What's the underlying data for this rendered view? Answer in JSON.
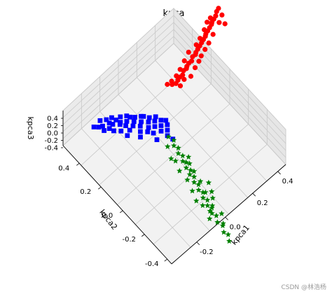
{
  "chart_data": {
    "type": "scatter",
    "projection": "3d",
    "title": "kpca",
    "xlabel": "kpca1",
    "ylabel": "kpca2",
    "zlabel": "kpca3",
    "xticks": [
      "-0.2",
      "0.0",
      "0.2",
      "0.4"
    ],
    "yticks": [
      "-0.4",
      "-0.2",
      "0.0",
      "0.2",
      "0.4"
    ],
    "zticks": [
      "0.4",
      "0.2",
      "0.0",
      "-0.2",
      "-0.4"
    ],
    "grid": true,
    "colors": {
      "red": "#ff0000",
      "blue": "#0000ff",
      "green": "#008000"
    },
    "series": [
      {
        "marker": "circle",
        "color": "#ff0000",
        "points": [
          [
            0.21,
            0.37
          ],
          [
            0.23,
            0.38
          ],
          [
            0.25,
            0.39
          ],
          [
            0.27,
            0.39
          ],
          [
            0.29,
            0.41
          ],
          [
            0.31,
            0.41
          ],
          [
            0.32,
            0.42
          ],
          [
            0.34,
            0.43
          ],
          [
            0.36,
            0.43
          ],
          [
            0.38,
            0.45
          ],
          [
            0.4,
            0.45
          ],
          [
            0.41,
            0.46
          ],
          [
            0.43,
            0.47
          ],
          [
            0.45,
            0.48
          ],
          [
            0.47,
            0.49
          ],
          [
            0.49,
            0.5
          ],
          [
            0.51,
            0.51
          ],
          [
            0.52,
            0.52
          ],
          [
            0.54,
            0.53
          ],
          [
            0.56,
            0.54
          ],
          [
            0.58,
            0.55
          ],
          [
            0.59,
            0.56
          ],
          [
            0.61,
            0.57
          ],
          [
            0.63,
            0.58
          ],
          [
            0.65,
            0.6
          ],
          [
            0.67,
            0.61
          ],
          [
            0.44,
            0.5
          ],
          [
            0.48,
            0.52
          ],
          [
            0.53,
            0.55
          ],
          [
            0.57,
            0.58
          ],
          [
            0.6,
            0.59
          ],
          [
            0.38,
            0.49
          ],
          [
            0.33,
            0.46
          ],
          [
            0.28,
            0.43
          ],
          [
            0.24,
            0.41
          ],
          [
            0.2,
            0.4
          ],
          [
            0.17,
            0.4
          ],
          [
            0.19,
            0.38
          ],
          [
            0.3,
            0.35
          ],
          [
            0.35,
            0.38
          ],
          [
            0.42,
            0.42
          ],
          [
            0.5,
            0.46
          ],
          [
            0.55,
            0.49
          ],
          [
            0.62,
            0.53
          ],
          [
            0.66,
            0.56
          ],
          [
            0.64,
            0.5
          ],
          [
            0.46,
            0.44
          ],
          [
            0.39,
            0.4
          ],
          [
            0.26,
            0.36
          ],
          [
            0.22,
            0.34
          ]
        ]
      },
      {
        "marker": "square",
        "color": "#0000ff",
        "points": [
          [
            -0.3,
            0.46
          ],
          [
            -0.26,
            0.43
          ],
          [
            -0.25,
            0.47
          ],
          [
            -0.22,
            0.42
          ],
          [
            -0.21,
            0.4
          ],
          [
            -0.19,
            0.44
          ],
          [
            -0.17,
            0.38
          ],
          [
            -0.15,
            0.41
          ],
          [
            -0.14,
            0.36
          ],
          [
            -0.12,
            0.39
          ],
          [
            -0.11,
            0.33
          ],
          [
            -0.09,
            0.35
          ],
          [
            -0.08,
            0.3
          ],
          [
            -0.06,
            0.33
          ],
          [
            -0.05,
            0.27
          ],
          [
            -0.03,
            0.29
          ],
          [
            -0.02,
            0.25
          ],
          [
            0.0,
            0.27
          ],
          [
            -0.04,
            0.22
          ],
          [
            -0.01,
            0.2
          ],
          [
            0.01,
            0.23
          ],
          [
            -0.07,
            0.24
          ],
          [
            -0.1,
            0.28
          ],
          [
            -0.13,
            0.31
          ],
          [
            -0.16,
            0.34
          ],
          [
            -0.18,
            0.37
          ],
          [
            -0.2,
            0.33
          ],
          [
            -0.23,
            0.36
          ],
          [
            -0.24,
            0.39
          ],
          [
            -0.27,
            0.4
          ],
          [
            -0.09,
            0.22
          ],
          [
            -0.12,
            0.25
          ],
          [
            -0.05,
            0.32
          ],
          [
            0.02,
            0.18
          ],
          [
            -0.03,
            0.17
          ],
          [
            -0.28,
            0.44
          ],
          [
            -0.16,
            0.3
          ],
          [
            -0.19,
            0.28
          ],
          [
            -0.14,
            0.22
          ],
          [
            -0.07,
            0.19
          ],
          [
            0.0,
            0.15
          ],
          [
            -0.11,
            0.37
          ],
          [
            -0.22,
            0.45
          ],
          [
            -0.18,
            0.41
          ],
          [
            -0.02,
            0.12
          ],
          [
            -0.08,
            0.14
          ],
          [
            0.03,
            0.21
          ],
          [
            -0.01,
            0.08
          ]
        ]
      },
      {
        "marker": "star",
        "color": "#008000",
        "points": [
          [
            -0.02,
            0.11
          ],
          [
            -0.01,
            0.07
          ],
          [
            -0.03,
            0.04
          ],
          [
            -0.02,
            0.01
          ],
          [
            -0.04,
            -0.02
          ],
          [
            -0.03,
            -0.05
          ],
          [
            -0.05,
            -0.08
          ],
          [
            -0.04,
            -0.1
          ],
          [
            -0.06,
            -0.13
          ],
          [
            -0.05,
            -0.16
          ],
          [
            -0.07,
            -0.18
          ],
          [
            -0.06,
            -0.21
          ],
          [
            -0.08,
            -0.24
          ],
          [
            -0.07,
            -0.27
          ],
          [
            -0.09,
            -0.3
          ],
          [
            -0.08,
            -0.33
          ],
          [
            -0.1,
            -0.36
          ],
          [
            -0.09,
            -0.39
          ],
          [
            -0.11,
            -0.42
          ],
          [
            -0.1,
            -0.45
          ],
          [
            -0.12,
            -0.48
          ],
          [
            -0.11,
            -0.51
          ],
          [
            -0.13,
            -0.55
          ],
          [
            -0.12,
            -0.59
          ],
          [
            -0.14,
            -0.63
          ],
          [
            -0.03,
            -0.12
          ],
          [
            -0.08,
            -0.05
          ],
          [
            -0.05,
            -0.26
          ],
          [
            -0.1,
            -0.2
          ],
          [
            -0.07,
            -0.34
          ],
          [
            -0.12,
            -0.28
          ],
          [
            -0.09,
            -0.44
          ],
          [
            -0.13,
            -0.4
          ],
          [
            -0.11,
            -0.58
          ],
          [
            -0.15,
            -0.5
          ],
          [
            -0.06,
            -0.4
          ],
          [
            -0.04,
            -0.18
          ],
          [
            -0.01,
            -0.08
          ],
          [
            -0.13,
            -0.66
          ],
          [
            -0.08,
            -0.52
          ],
          [
            -0.14,
            -0.35
          ],
          [
            -0.1,
            -0.12
          ],
          [
            -0.06,
            0.06
          ],
          [
            -0.02,
            -0.3
          ],
          [
            -0.12,
            -0.46
          ],
          [
            -0.15,
            -0.7
          ],
          [
            -0.04,
            -0.36
          ],
          [
            -0.09,
            -0.02
          ]
        ]
      }
    ]
  },
  "watermark": "CSDN @林浩杨"
}
